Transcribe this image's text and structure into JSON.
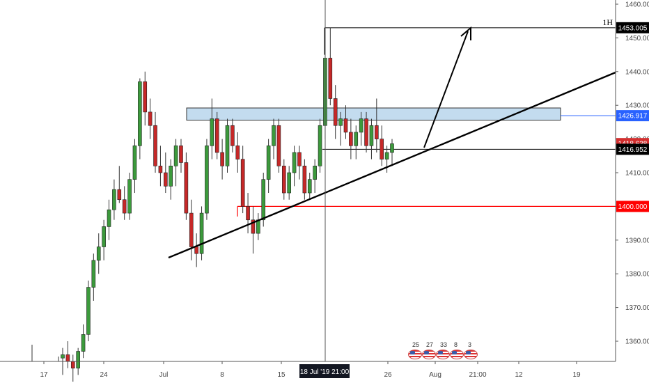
{
  "chart_data": {
    "type": "candlestick",
    "symbol_label": "1H",
    "price_axis": {
      "min": 1350,
      "max": 1460,
      "ticks": [
        "1360.000",
        "1370.000",
        "1380.000",
        "1390.000",
        "1400.000",
        "1410.000",
        "1420.000",
        "1430.000",
        "1440.000",
        "1450.000",
        "1460.000"
      ]
    },
    "time_axis": {
      "labels": [
        "17",
        "24",
        "Jul",
        "8",
        "15",
        "26",
        "Aug",
        "21:00",
        "12",
        "19"
      ],
      "crosshair_label": "18 Jul '19  21:00"
    },
    "price_labels": [
      {
        "text": "1453.005",
        "value": 1453.005,
        "bg": "#000000",
        "fg": "#ffffff"
      },
      {
        "text": "1426.917",
        "value": 1426.917,
        "bg": "#2962ff",
        "fg": "#ffffff"
      },
      {
        "text": "1418.638",
        "value": 1418.638,
        "bg": "#d32f2f",
        "fg": "#ffffff"
      },
      {
        "text": "1416.952",
        "value": 1416.952,
        "bg": "#000000",
        "fg": "#ffffff"
      },
      {
        "text": "1400.000",
        "value": 1400.0,
        "bg": "#ff0000",
        "fg": "#ffffff"
      }
    ],
    "candles": [
      [
        1355,
        1358,
        1350,
        1356
      ],
      [
        1356,
        1360,
        1352,
        1354
      ],
      [
        1354,
        1356,
        1348,
        1352
      ],
      [
        1352,
        1358,
        1350,
        1357
      ],
      [
        1357,
        1365,
        1355,
        1362
      ],
      [
        1362,
        1378,
        1360,
        1376
      ],
      [
        1376,
        1386,
        1372,
        1384
      ],
      [
        1384,
        1392,
        1380,
        1388
      ],
      [
        1388,
        1396,
        1384,
        1394
      ],
      [
        1394,
        1402,
        1390,
        1399
      ],
      [
        1399,
        1408,
        1396,
        1405
      ],
      [
        1405,
        1412,
        1401,
        1402
      ],
      [
        1402,
        1406,
        1396,
        1398
      ],
      [
        1398,
        1410,
        1396,
        1408
      ],
      [
        1408,
        1420,
        1404,
        1418
      ],
      [
        1418,
        1438,
        1414,
        1437
      ],
      [
        1437,
        1440,
        1424,
        1428
      ],
      [
        1428,
        1432,
        1420,
        1424
      ],
      [
        1424,
        1428,
        1410,
        1412
      ],
      [
        1412,
        1418,
        1406,
        1410
      ],
      [
        1410,
        1416,
        1404,
        1406
      ],
      [
        1406,
        1414,
        1402,
        1412
      ],
      [
        1412,
        1420,
        1406,
        1418
      ],
      [
        1418,
        1420,
        1410,
        1413
      ],
      [
        1413,
        1416,
        1396,
        1398
      ],
      [
        1398,
        1402,
        1384,
        1388
      ],
      [
        1388,
        1392,
        1382,
        1386
      ],
      [
        1386,
        1400,
        1384,
        1398
      ],
      [
        1398,
        1420,
        1396,
        1418
      ],
      [
        1418,
        1432,
        1414,
        1426
      ],
      [
        1426,
        1428,
        1414,
        1416
      ],
      [
        1416,
        1420,
        1408,
        1412
      ],
      [
        1412,
        1426,
        1410,
        1424
      ],
      [
        1424,
        1426,
        1416,
        1418
      ],
      [
        1418,
        1422,
        1410,
        1414
      ],
      [
        1414,
        1418,
        1398,
        1400
      ],
      [
        1400,
        1404,
        1392,
        1396
      ],
      [
        1396,
        1400,
        1386,
        1392
      ],
      [
        1392,
        1398,
        1390,
        1396
      ],
      [
        1396,
        1410,
        1394,
        1408
      ],
      [
        1408,
        1420,
        1404,
        1418
      ],
      [
        1418,
        1426,
        1414,
        1424
      ],
      [
        1424,
        1426,
        1410,
        1412
      ],
      [
        1412,
        1414,
        1402,
        1404
      ],
      [
        1404,
        1412,
        1402,
        1410
      ],
      [
        1410,
        1418,
        1406,
        1416
      ],
      [
        1416,
        1418,
        1408,
        1412
      ],
      [
        1412,
        1414,
        1402,
        1404
      ],
      [
        1404,
        1410,
        1402,
        1408
      ],
      [
        1408,
        1414,
        1404,
        1412
      ],
      [
        1412,
        1426,
        1410,
        1424
      ],
      [
        1424,
        1446,
        1420,
        1444
      ],
      [
        1444,
        1453,
        1430,
        1432
      ],
      [
        1432,
        1436,
        1420,
        1424
      ],
      [
        1424,
        1428,
        1418,
        1426
      ],
      [
        1426,
        1430,
        1420,
        1422
      ],
      [
        1422,
        1426,
        1414,
        1418
      ],
      [
        1418,
        1424,
        1414,
        1422
      ],
      [
        1422,
        1428,
        1418,
        1426
      ],
      [
        1426,
        1428,
        1416,
        1418
      ],
      [
        1418,
        1426,
        1414,
        1424
      ],
      [
        1424,
        1432,
        1416,
        1420
      ],
      [
        1420,
        1424,
        1412,
        1414
      ],
      [
        1414,
        1418,
        1410,
        1416
      ],
      [
        1416,
        1420,
        1412,
        1418.6
      ]
    ],
    "drawings": {
      "resistance_zone": {
        "from": 1426,
        "to": 1429,
        "label": ""
      },
      "support_line_value": 1400,
      "level_1416": 1416.952,
      "high_1453": 1453.005
    },
    "events": [
      "25",
      "27",
      "33",
      "8",
      "3"
    ]
  }
}
